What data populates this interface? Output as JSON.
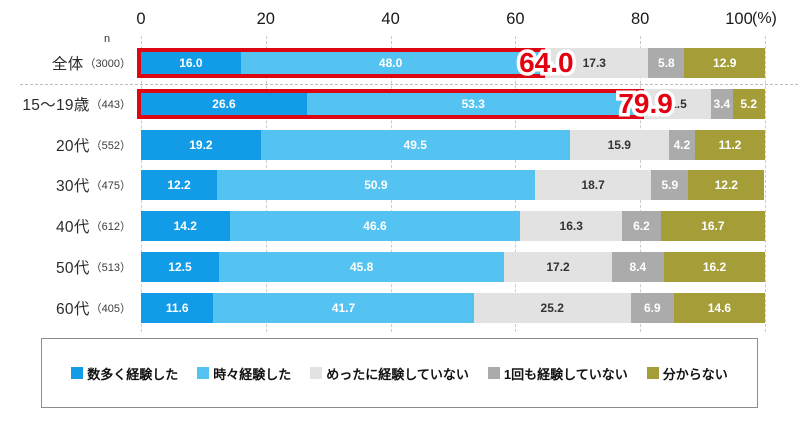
{
  "axis": {
    "n_label": "n",
    "unit_label": "(%)",
    "ticks": [
      0,
      20,
      40,
      60,
      80,
      100
    ]
  },
  "chart_data": {
    "type": "bar",
    "orientation": "horizontal",
    "stacked": true,
    "xlim": [
      0,
      100
    ],
    "x_ticks": [
      0,
      20,
      40,
      60,
      80,
      100
    ],
    "x_unit": "(%)",
    "grid": "vertical-dashed",
    "legend_position": "bottom-box",
    "categories": [
      {
        "label": "全体",
        "n": "（3000）"
      },
      {
        "label": "15～19歳",
        "n": "（443）"
      },
      {
        "label": "20代",
        "n": "（552）"
      },
      {
        "label": "30代",
        "n": "（475）"
      },
      {
        "label": "40代",
        "n": "（612）"
      },
      {
        "label": "50代",
        "n": "（513）"
      },
      {
        "label": "60代",
        "n": "（405）"
      }
    ],
    "series": [
      {
        "name": "数多く経験した",
        "color": "#129ce8",
        "label_color": "#ffffff",
        "values": [
          "16.0",
          "26.6",
          "19.2",
          "12.2",
          "14.2",
          "12.5",
          "11.6"
        ]
      },
      {
        "name": "時々経験した",
        "color": "#54c3f1",
        "label_color": "#ffffff",
        "values": [
          "48.0",
          "53.3",
          "49.5",
          "50.9",
          "46.6",
          "45.8",
          "41.7"
        ]
      },
      {
        "name": "めったに経験していない",
        "color": "#e2e2e2",
        "label_color": "#333333",
        "values": [
          "17.3",
          "11.5",
          "15.9",
          "18.7",
          "16.3",
          "17.2",
          "25.2"
        ]
      },
      {
        "name": "1回も経験していない",
        "color": "#ababab",
        "label_color": "#ffffff",
        "values": [
          "5.8",
          "3.4",
          "4.2",
          "5.9",
          "6.2",
          "8.4",
          "6.9"
        ]
      },
      {
        "name": "分からない",
        "color": "#a49d38",
        "label_color": "#ffffff",
        "values": [
          "12.9",
          "5.2",
          "11.2",
          "12.2",
          "16.7",
          "16.2",
          "14.6"
        ]
      }
    ],
    "highlights": [
      {
        "row": 0,
        "span": 2,
        "total_label": "64.0",
        "box_color": "#dd0713"
      },
      {
        "row": 1,
        "span": 2,
        "total_label": "79.9",
        "box_color": "#dd0713"
      }
    ]
  }
}
